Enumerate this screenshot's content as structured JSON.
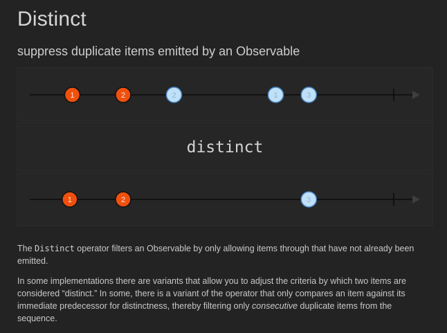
{
  "header": {
    "title": "Distinct",
    "subtitle": "suppress duplicate items emitted by an Observable"
  },
  "diagram": {
    "operator_label": "distinct",
    "input_items": [
      {
        "label": "1",
        "color": "#f0500e",
        "time": 1
      },
      {
        "label": "2",
        "color": "#f0500e",
        "time": 2
      },
      {
        "label": "2",
        "color": "#bfe0f7",
        "time": 3
      },
      {
        "label": "1",
        "color": "#bfe0f7",
        "time": 5
      },
      {
        "label": "3",
        "color": "#bfe0f7",
        "time": 5.65
      }
    ],
    "output_items": [
      {
        "label": "1",
        "color": "#f0500e",
        "time": 0.95
      },
      {
        "label": "2",
        "color": "#f0500e",
        "time": 2
      },
      {
        "label": "3",
        "color": "#bfe0f7",
        "time": 5.65
      }
    ],
    "colors": {
      "background": "#232323",
      "panel": "#262626",
      "panel_border": "#2f2f2f",
      "timeline": "#0c0c0c",
      "arrow": "#3e3e3e",
      "label_text": "#c8c8c8"
    }
  },
  "description": {
    "p1_before": "The ",
    "p1_code": "Distinct",
    "p1_after": " operator filters an Observable by only allowing items through that have not already been emitted.",
    "p2_before": "In some implementations there are variants that allow you to adjust the criteria by which two items are considered “distinct.” In some, there is a variant of the operator that only compares an item against its immediate predecessor for distinctness, thereby filtering only ",
    "p2_em": "consecutive",
    "p2_after": " duplicate items from the sequence."
  }
}
